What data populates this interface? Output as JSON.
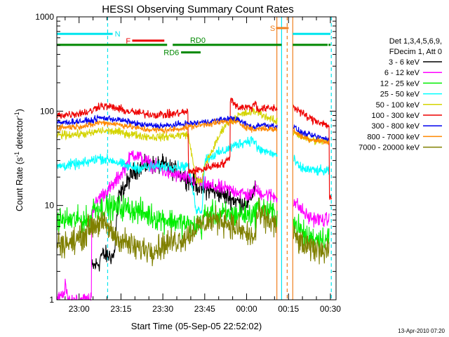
{
  "chart_data": {
    "type": "line",
    "title": "HESSI Observing Summary Count Rates",
    "xlabel": "Start Time (05-Sep-05 22:52:02)",
    "ylabel_main": "Count Rate (s",
    "ylabel_sup1": "-1",
    "ylabel_mid": " detector",
    "ylabel_sup2": "-1",
    "ylabel_end": ")",
    "footer": "13-Apr-2010 07:20",
    "x_start_minutes": 0,
    "x_end_minutes": 100,
    "y_scale": "log",
    "ylim": [
      1,
      1000
    ],
    "x_ticks": [
      {
        "label": "23:00",
        "minutes": 7.97
      },
      {
        "label": "23:15",
        "minutes": 22.97
      },
      {
        "label": "23:30",
        "minutes": 37.97
      },
      {
        "label": "23:45",
        "minutes": 52.97
      },
      {
        "label": "00:00",
        "minutes": 67.97
      },
      {
        "label": "00:15",
        "minutes": 82.97
      },
      {
        "label": "00:30",
        "minutes": 97.97
      }
    ],
    "y_ticks": [
      {
        "label": "1",
        "value": 1
      },
      {
        "label": "10",
        "value": 10
      },
      {
        "label": "100",
        "value": 100
      },
      {
        "label": "1000",
        "value": 1000
      }
    ],
    "legend_header": [
      "Det 1,3,4,5,6,9,",
      "FDecim 1, Att 0"
    ],
    "legend_placement": "right",
    "flags": [
      {
        "label": "N",
        "color": "#00e5ee",
        "segments": [
          [
            0,
            20
          ],
          [
            84.5,
            98
          ]
        ],
        "level": 660
      },
      {
        "label": "F",
        "color": "#ee0000",
        "segments": [
          [
            27,
            38.5
          ]
        ],
        "level": 560
      },
      {
        "label": "S",
        "color": "#f08020",
        "segments": [
          [
            78.5,
            83
          ]
        ],
        "level": 760
      },
      {
        "label": "RD0",
        "color": "#008800",
        "segments": [
          [
            0,
            39.5
          ],
          [
            41.5,
            80.5
          ],
          [
            84.5,
            97
          ],
          [
            97.3,
            98
          ]
        ],
        "level": 505
      },
      {
        "label": "RD6",
        "color": "#008800",
        "segments": [
          [
            44.5,
            51.5
          ]
        ],
        "level": 420
      }
    ],
    "vlines": [
      {
        "minutes": 18.2,
        "color": "#00e5ee",
        "dashed": true
      },
      {
        "minutes": 78.8,
        "color": "#f08020",
        "dashed": false
      },
      {
        "minutes": 80.5,
        "color": "#00e5ee",
        "dashed": false
      },
      {
        "minutes": 82.5,
        "color": "#f08020",
        "dashed": true
      },
      {
        "minutes": 84.5,
        "color": "#f08020",
        "dashed": false
      },
      {
        "minutes": 98.3,
        "color": "#00e5ee",
        "dashed": true
      }
    ],
    "gaps": [
      [
        79.0,
        84.7
      ]
    ],
    "series": [
      {
        "name": "3 - 6 keV",
        "color": "#000000",
        "noise": 0.09,
        "points": [
          [
            12.5,
            2.2
          ],
          [
            15.5,
            2.5
          ],
          [
            15.6,
            3.0
          ],
          [
            20.5,
            2.9
          ],
          [
            22,
            12
          ],
          [
            28,
            24
          ],
          [
            33,
            27
          ],
          [
            38,
            27
          ],
          [
            44,
            22
          ],
          [
            48,
            18
          ],
          [
            52,
            15
          ],
          [
            57,
            14
          ],
          [
            62,
            12
          ],
          [
            65,
            11
          ],
          [
            68,
            10.5
          ],
          [
            69,
            11
          ],
          [
            69.5,
            12
          ],
          [
            71.5,
            18
          ]
        ]
      },
      {
        "name": "6 - 12 keV",
        "color": "#ff00ff",
        "noise": 0.07,
        "points": [
          [
            0,
            1
          ],
          [
            2.5,
            1.1
          ],
          [
            3,
            1.6
          ],
          [
            3.7,
            1
          ],
          [
            10,
            1
          ],
          [
            12,
            1
          ],
          [
            12.4,
            1.1
          ],
          [
            12.5,
            8.5
          ],
          [
            15,
            12
          ],
          [
            20,
            16
          ],
          [
            25,
            27
          ],
          [
            27,
            36
          ],
          [
            30,
            32
          ],
          [
            35,
            26
          ],
          [
            40,
            22
          ],
          [
            45,
            20
          ],
          [
            50,
            18
          ],
          [
            55,
            16
          ],
          [
            60,
            15
          ],
          [
            65,
            14
          ],
          [
            68,
            13
          ],
          [
            70,
            13
          ],
          [
            71.5,
            16
          ],
          [
            71.5,
            14
          ],
          [
            85,
            11
          ],
          [
            90,
            7.5
          ],
          [
            95,
            7
          ],
          [
            97.5,
            7
          ],
          [
            97.6,
            6
          ]
        ]
      },
      {
        "name": "12 - 25 keV",
        "color": "#00ee00",
        "noise": 0.12,
        "points": [
          [
            0,
            7
          ],
          [
            8,
            7
          ],
          [
            12.4,
            7
          ],
          [
            12.5,
            9.5
          ],
          [
            20,
            9.5
          ],
          [
            25,
            9.5
          ],
          [
            30,
            8.5
          ],
          [
            35,
            7.5
          ],
          [
            40,
            7
          ],
          [
            45,
            6.5
          ],
          [
            48,
            6
          ],
          [
            50,
            6
          ],
          [
            52,
            6
          ],
          [
            53,
            8
          ],
          [
            60,
            8
          ],
          [
            65,
            8
          ],
          [
            70,
            8
          ],
          [
            71.5,
            8
          ],
          [
            71.5,
            10
          ],
          [
            85,
            6.5
          ],
          [
            90,
            4.5
          ],
          [
            95,
            4.5
          ],
          [
            97.6,
            4.5
          ]
        ]
      },
      {
        "name": "25 - 50 keV",
        "color": "#00ffff",
        "noise": 0.05,
        "points": [
          [
            0,
            26
          ],
          [
            10,
            28
          ],
          [
            12.5,
            30
          ],
          [
            15,
            32
          ],
          [
            20,
            30
          ],
          [
            25,
            26
          ],
          [
            30,
            25
          ],
          [
            35,
            26
          ],
          [
            40,
            26
          ],
          [
            45,
            26
          ],
          [
            47,
            27
          ],
          [
            50,
            9
          ],
          [
            52,
            9
          ],
          [
            53,
            31
          ],
          [
            55,
            33
          ],
          [
            60,
            38
          ],
          [
            65,
            45
          ],
          [
            70,
            50
          ],
          [
            71.5,
            46
          ],
          [
            71.5,
            40
          ],
          [
            85,
            30
          ],
          [
            87,
            25
          ],
          [
            90,
            24
          ],
          [
            95,
            23
          ],
          [
            97.5,
            23
          ]
        ]
      },
      {
        "name": "50 - 100 keV",
        "color": "#d4d400",
        "noise": 0.04,
        "points": [
          [
            0,
            56
          ],
          [
            8,
            57
          ],
          [
            12.5,
            58
          ],
          [
            15,
            62
          ],
          [
            20,
            61
          ],
          [
            25,
            58
          ],
          [
            30,
            55
          ],
          [
            35,
            53
          ],
          [
            40,
            54
          ],
          [
            45,
            56
          ],
          [
            47,
            57
          ],
          [
            50,
            18
          ],
          [
            52,
            18
          ],
          [
            53,
            27
          ],
          [
            56,
            40
          ],
          [
            60,
            70
          ],
          [
            65,
            90
          ],
          [
            70,
            98
          ],
          [
            71.5,
            100
          ],
          [
            71.5,
            100
          ],
          [
            85,
            60
          ],
          [
            87,
            55
          ],
          [
            90,
            50
          ],
          [
            95,
            48
          ],
          [
            97.5,
            48
          ]
        ]
      },
      {
        "name": "100 - 300 keV",
        "color": "#ee0000",
        "noise": 0.04,
        "points": [
          [
            0,
            90
          ],
          [
            8,
            95
          ],
          [
            12.5,
            100
          ],
          [
            15,
            115
          ],
          [
            20,
            110
          ],
          [
            25,
            100
          ],
          [
            30,
            95
          ],
          [
            35,
            92
          ],
          [
            40,
            92
          ],
          [
            45,
            97
          ],
          [
            47,
            98
          ],
          [
            47.1,
            23
          ],
          [
            52,
            24
          ],
          [
            55,
            26
          ],
          [
            60,
            28
          ],
          [
            62,
            32
          ],
          [
            62.1,
            135
          ],
          [
            65,
            110
          ],
          [
            70,
            110
          ],
          [
            71.5,
            130
          ],
          [
            71.5,
            105
          ],
          [
            85,
            110
          ],
          [
            87,
            100
          ],
          [
            90,
            85
          ],
          [
            95,
            75
          ],
          [
            97.5,
            70
          ],
          [
            97.6,
            12
          ],
          [
            98.5,
            12
          ]
        ]
      },
      {
        "name": "300 - 800 keV",
        "color": "#0000ee",
        "noise": 0.03,
        "points": [
          [
            0,
            75
          ],
          [
            8,
            78
          ],
          [
            12.5,
            79
          ],
          [
            15,
            85
          ],
          [
            20,
            83
          ],
          [
            25,
            78
          ],
          [
            30,
            72
          ],
          [
            35,
            70
          ],
          [
            40,
            70
          ],
          [
            45,
            73
          ],
          [
            50,
            75
          ],
          [
            55,
            78
          ],
          [
            60,
            82
          ],
          [
            63,
            84
          ],
          [
            65,
            80
          ],
          [
            68,
            72
          ],
          [
            70,
            68
          ],
          [
            71.5,
            65
          ],
          [
            71.5,
            72
          ],
          [
            85,
            68
          ],
          [
            87,
            60
          ],
          [
            90,
            56
          ],
          [
            95,
            52
          ],
          [
            97.5,
            50
          ]
        ]
      },
      {
        "name": "800 - 7000 keV",
        "color": "#ff8800",
        "noise": 0.03,
        "points": [
          [
            0,
            67
          ],
          [
            8,
            69
          ],
          [
            12.5,
            71
          ],
          [
            15,
            76
          ],
          [
            20,
            74
          ],
          [
            25,
            70
          ],
          [
            30,
            65
          ],
          [
            35,
            63
          ],
          [
            40,
            63
          ],
          [
            45,
            66
          ],
          [
            50,
            70
          ],
          [
            55,
            74
          ],
          [
            60,
            77
          ],
          [
            63,
            78
          ],
          [
            65,
            75
          ],
          [
            68,
            68
          ],
          [
            70,
            64
          ],
          [
            71.5,
            62
          ],
          [
            71.5,
            66
          ],
          [
            85,
            62
          ],
          [
            87,
            55
          ],
          [
            90,
            51
          ],
          [
            95,
            48
          ],
          [
            97.5,
            46
          ]
        ]
      },
      {
        "name": "7000 - 20000 keV",
        "color": "#808000",
        "noise": 0.13,
        "points": [
          [
            0,
            4
          ],
          [
            5,
            4
          ],
          [
            8,
            4.5
          ],
          [
            10,
            5
          ],
          [
            12,
            6
          ],
          [
            15,
            6.5
          ],
          [
            18,
            6
          ],
          [
            20,
            5
          ],
          [
            22,
            4.5
          ],
          [
            25,
            4
          ],
          [
            28,
            3.5
          ],
          [
            30,
            3.5
          ],
          [
            35,
            3.5
          ],
          [
            40,
            4
          ],
          [
            45,
            4.5
          ],
          [
            48,
            5
          ],
          [
            50,
            6
          ],
          [
            55,
            7
          ],
          [
            60,
            7
          ],
          [
            63,
            6
          ],
          [
            65,
            5.5
          ],
          [
            68,
            5
          ],
          [
            70,
            4.5
          ],
          [
            71.5,
            5
          ],
          [
            71.5,
            8
          ],
          [
            85,
            5
          ],
          [
            87,
            4
          ],
          [
            90,
            3.5
          ],
          [
            95,
            3.5
          ],
          [
            97.5,
            3.5
          ]
        ]
      }
    ]
  }
}
